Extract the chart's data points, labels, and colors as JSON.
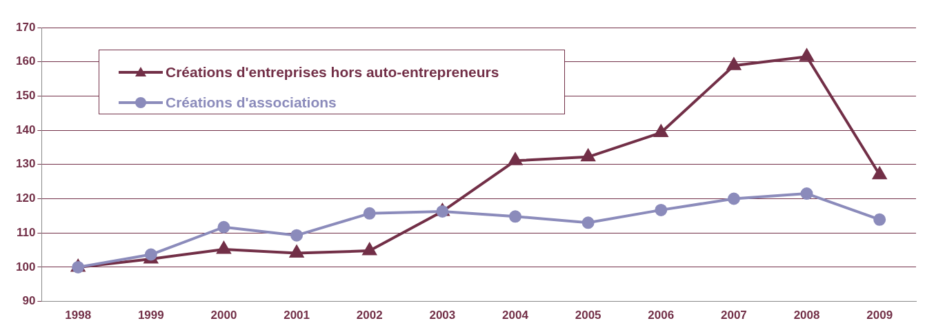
{
  "chart_data": {
    "type": "line",
    "categories": [
      "1998",
      "1999",
      "2000",
      "2001",
      "2002",
      "2003",
      "2004",
      "2005",
      "2006",
      "2007",
      "2008",
      "2009"
    ],
    "series": [
      {
        "name": "Créations d'entreprises hors auto-entrepreneurs",
        "color": "#722f47",
        "marker": "triangle",
        "values": [
          100,
          102.4,
          105.2,
          104.1,
          104.8,
          116.3,
          131.1,
          132.2,
          139.3,
          158.9,
          161.5,
          127
        ]
      },
      {
        "name": "Créations d'associations",
        "color": "#8b8bbb",
        "marker": "circle",
        "values": [
          100,
          103.7,
          111.7,
          109.3,
          115.7,
          116.3,
          114.8,
          113,
          116.7,
          120,
          121.5,
          113.9
        ]
      }
    ],
    "ylim": [
      90,
      170
    ],
    "yticks": [
      90,
      100,
      110,
      120,
      130,
      140,
      150,
      160,
      170
    ],
    "grid": "y",
    "legend": "top left",
    "line_style": "solid"
  }
}
